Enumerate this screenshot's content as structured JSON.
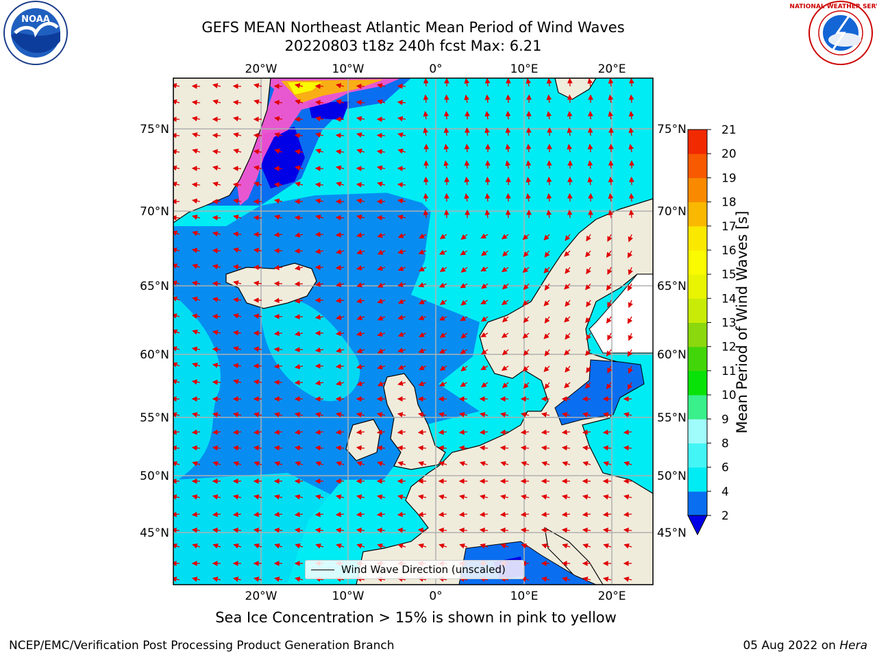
{
  "title_line1": "GEFS MEAN Northeast Atlantic Mean Period of Wind Waves",
  "title_line2": "20220803 t18z 240h fcst   Max: 6.21",
  "caption": "Sea Ice Concentration > 15% is shown in pink to yellow",
  "footer_left": "NCEP/EMC/Verification Post Processing Product Generation Branch",
  "footer_date": "05 Aug 2022 on ",
  "footer_host": "Hera",
  "legend_label": "Wind Wave Direction (unscaled)",
  "colorbar": {
    "label": "Mean Period of Wind Waves [s]",
    "ticks": [
      "2",
      "4",
      "6",
      "8",
      "9",
      "10",
      "11",
      "12",
      "13",
      "14",
      "15",
      "16",
      "17",
      "18",
      "19",
      "20",
      "21"
    ],
    "colors": [
      "#0a6ef0",
      "#00ecf4",
      "#44f5f5",
      "#a0fbfb",
      "#39f08a",
      "#08e208",
      "#42d60a",
      "#8bd80e",
      "#c8ec08",
      "#e8f402",
      "#fafa00",
      "#fbe800",
      "#fbb800",
      "#f98a00",
      "#f85a00",
      "#f22a00",
      "#ee0000"
    ],
    "extend_color": "#0000e6"
  },
  "lon_labels": [
    "20°W",
    "10°W",
    "0°",
    "10°E",
    "20°E"
  ],
  "lat_labels": [
    "75°N",
    "70°N",
    "65°N",
    "60°N",
    "55°N",
    "50°N",
    "45°N"
  ],
  "logos": {
    "left": "NOAA",
    "right": "NATIONAL WEATHER SERVICE"
  },
  "colors": {
    "land": "#efecdc",
    "grid": "#b0b0b0",
    "arrow": "#e00000",
    "ocean_low": "#0a6ef0",
    "ocean_mid": "#00ecf4",
    "ice": "#ff55cc"
  }
}
